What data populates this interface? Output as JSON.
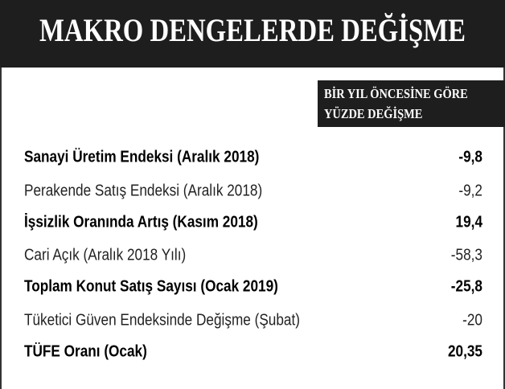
{
  "header": {
    "title": "MAKRO DENGELERDE DEĞİŞME"
  },
  "table": {
    "column_header": [
      "BİR YIL ÖNCESİNE GÖRE",
      "YÜZDE DEĞİŞME"
    ],
    "rows": [
      {
        "label": "Sanayi Üretim Endeksi (Aralık 2018)",
        "value": "-9,8",
        "bold": true
      },
      {
        "label": "Perakende Satış Endeksi (Aralık 2018)",
        "value": "-9,2",
        "bold": false
      },
      {
        "label": "İşsizlik Oranında Artış (Kasım 2018)",
        "value": "19,4",
        "bold": true
      },
      {
        "label": "Cari Açık (Aralık 2018 Yılı)",
        "value": "-58,3",
        "bold": false
      },
      {
        "label": "Toplam Konut Satış Sayısı (Ocak 2019)",
        "value": "-25,8",
        "bold": true
      },
      {
        "label": "Tüketici Güven Endeksinde Değişme (Şubat)",
        "value": "-20",
        "bold": false
      },
      {
        "label": "TÜFE Oranı (Ocak)",
        "value": "20,35",
        "bold": true
      }
    ]
  }
}
